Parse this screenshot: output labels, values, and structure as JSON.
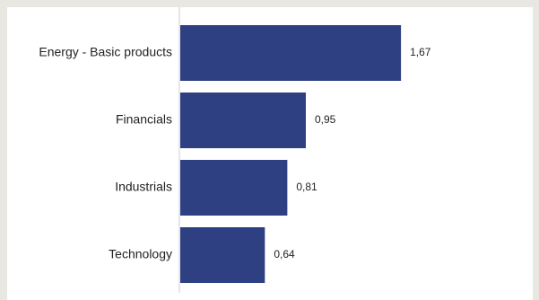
{
  "chart_data": {
    "type": "bar",
    "orientation": "horizontal",
    "categories": [
      "Energy - Basic products",
      "Financials",
      "Industrials",
      "Technology"
    ],
    "values": [
      1.67,
      0.95,
      0.81,
      0.64
    ],
    "value_labels": [
      "1,67",
      "0,95",
      "0,81",
      "0,64"
    ],
    "title": "",
    "xlabel": "",
    "ylabel": "",
    "xlim": [
      0,
      1.9
    ],
    "grid": false,
    "bar_color": "#2e3f82",
    "axis_color": "#cccccc"
  }
}
